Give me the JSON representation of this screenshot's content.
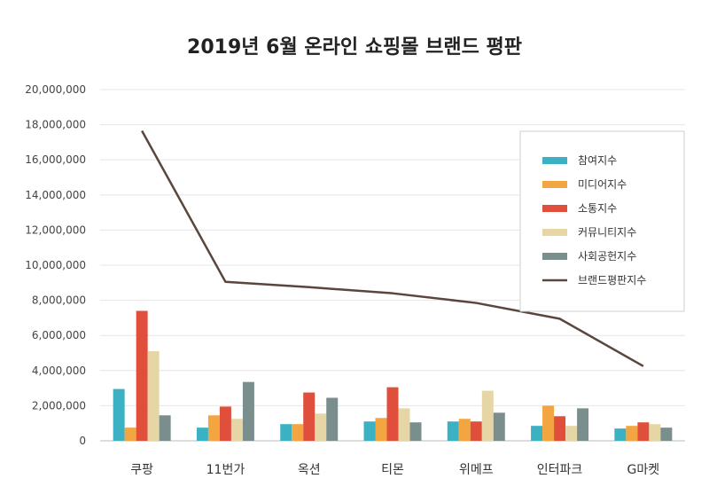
{
  "chart_data": {
    "type": "bar",
    "title": "2019년 6월 온라인 쇼핑몰 브랜드 평판",
    "categories": [
      "쿠팡",
      "11번가",
      "옥션",
      "티몬",
      "위메프",
      "인터파크",
      "G마켓"
    ],
    "ylim": [
      0,
      20000000
    ],
    "yticks": [
      0,
      2000000,
      4000000,
      6000000,
      8000000,
      10000000,
      12000000,
      14000000,
      16000000,
      18000000,
      20000000
    ],
    "ytick_labels": [
      "0",
      "2,000,000",
      "4,000,000",
      "6,000,000",
      "8,000,000",
      "10,000,000",
      "12,000,000",
      "14,000,000",
      "16,000,000",
      "18,000,000",
      "20,000,000"
    ],
    "grid": true,
    "legend_position": "top-right",
    "series": [
      {
        "name": "참여지수",
        "kind": "bar",
        "color": "#3cb1c3",
        "values": [
          2950000,
          750000,
          950000,
          1100000,
          1100000,
          850000,
          700000
        ]
      },
      {
        "name": "미디어지수",
        "kind": "bar",
        "color": "#f2a541",
        "values": [
          750000,
          1450000,
          950000,
          1300000,
          1250000,
          2000000,
          850000
        ]
      },
      {
        "name": "소통지수",
        "kind": "bar",
        "color": "#e04e3c",
        "values": [
          7400000,
          1950000,
          2750000,
          3050000,
          1100000,
          1400000,
          1050000
        ]
      },
      {
        "name": "커뮤니티지수",
        "kind": "bar",
        "color": "#e6d6a6",
        "values": [
          5100000,
          1250000,
          1550000,
          1850000,
          2850000,
          850000,
          950000
        ]
      },
      {
        "name": "사회공헌지수",
        "kind": "bar",
        "color": "#7b8e8e",
        "values": [
          1450000,
          3350000,
          2450000,
          1050000,
          1600000,
          1850000,
          750000
        ]
      },
      {
        "name": "브랜드평판지수",
        "kind": "line",
        "color": "#5a463d",
        "values": [
          17650000,
          9050000,
          8750000,
          8400000,
          7850000,
          6950000,
          4250000
        ]
      }
    ]
  }
}
